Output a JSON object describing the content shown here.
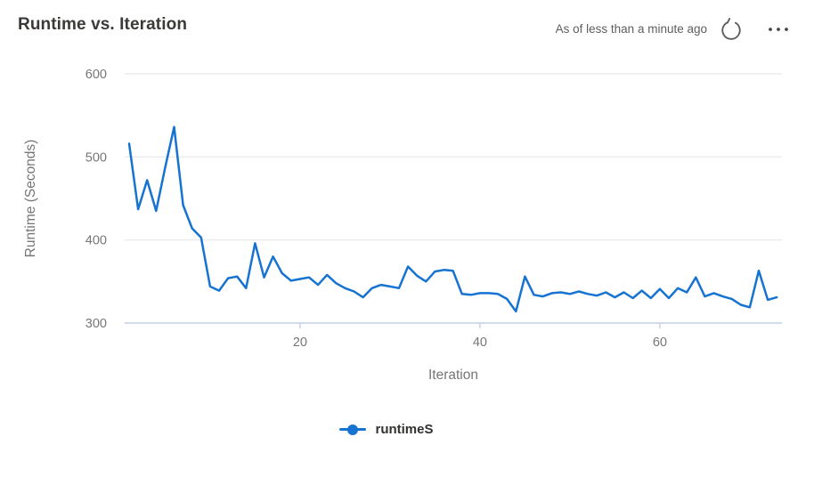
{
  "header": {
    "title": "Runtime vs. Iteration",
    "last_updated": "As of less than a minute ago",
    "refresh_icon": "refresh-circular-arrow",
    "more_icon": "ellipsis-horizontal"
  },
  "colors": {
    "series_blue": "#1673d1",
    "gridline": "#e8e8e8",
    "axis_line": "#c3cfe6",
    "tick_label": "#767676",
    "axis_title": "#767676",
    "title_text": "#3b3a39",
    "status_text": "#605e5c",
    "icon": "#5d5b58",
    "legend_text": "#323130"
  },
  "legend": {
    "items": [
      {
        "label": "runtimeS",
        "marker": "dot-on-line",
        "color": "#1673d1"
      }
    ]
  },
  "chart_data": {
    "type": "line",
    "title": "Runtime vs. Iteration",
    "xlabel": "Iteration",
    "ylabel": "Runtime (Seconds)",
    "xlim": [
      1,
      73
    ],
    "ylim": [
      300,
      600
    ],
    "x_ticks": [
      20,
      40,
      60
    ],
    "y_ticks": [
      300,
      400,
      500,
      600
    ],
    "grid": "horizontal-only",
    "legend_position": "bottom-center",
    "series": [
      {
        "name": "runtimeS",
        "color": "#1673d1",
        "x_start": 1,
        "values": [
          516,
          437,
          472,
          435,
          487,
          536,
          442,
          414,
          403,
          344,
          339,
          354,
          356,
          342,
          396,
          355,
          380,
          360,
          351,
          353,
          355,
          346,
          358,
          348,
          342,
          338,
          331,
          342,
          346,
          344,
          342,
          368,
          357,
          350,
          362,
          364,
          363,
          335,
          334,
          336,
          336,
          335,
          329,
          314,
          356,
          334,
          332,
          336,
          337,
          335,
          338,
          335,
          333,
          337,
          331,
          337,
          330,
          339,
          330,
          341,
          330,
          342,
          337,
          355,
          332,
          336,
          332,
          329,
          322,
          319,
          363,
          328,
          331
        ]
      }
    ]
  }
}
